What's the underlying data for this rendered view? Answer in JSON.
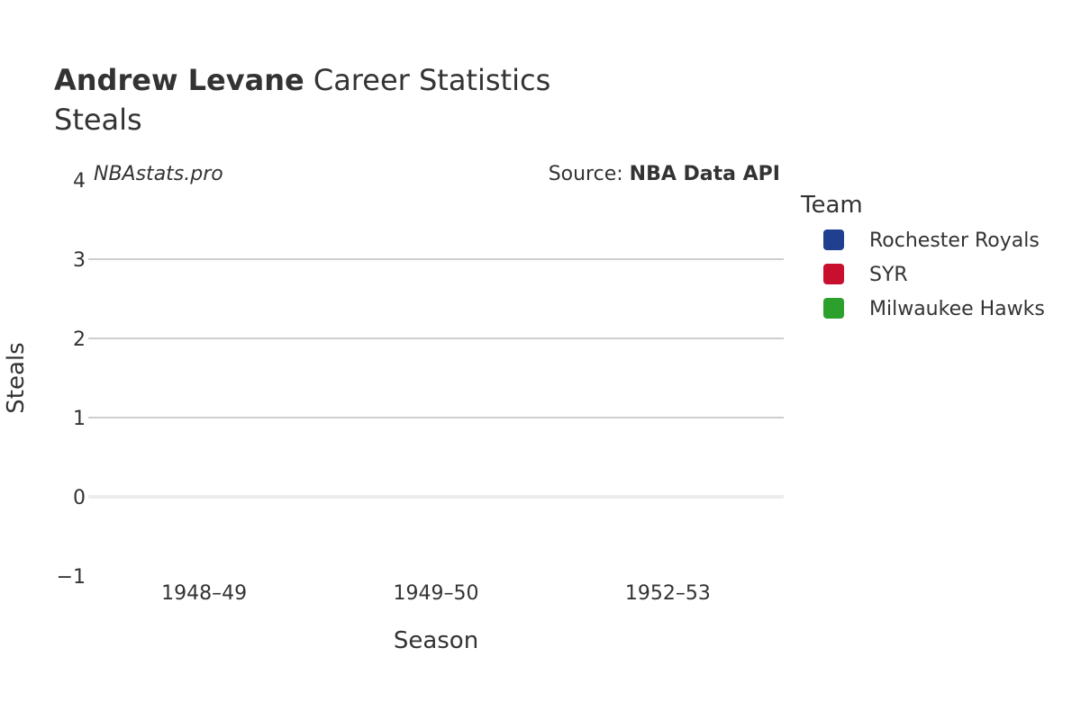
{
  "chart_data": {
    "type": "bar",
    "title_bold": "Andrew Levane",
    "title_rest": " Career Statistics",
    "subtitle": "Steals",
    "xlabel": "Season",
    "ylabel": "Steals",
    "categories": [
      "1948–49",
      "1949–50",
      "1952–53"
    ],
    "ylim": [
      -1,
      4
    ],
    "yticks": [
      4,
      3,
      2,
      1,
      0,
      -1
    ],
    "ytick_labels": [
      "4",
      "3",
      "2",
      "1",
      "0",
      "−1"
    ],
    "grid": true,
    "legend": {
      "title": "Team",
      "position": "right",
      "entries": [
        {
          "name": "Rochester Royals",
          "color": "#1f3f8f"
        },
        {
          "name": "SYR",
          "color": "#c8102e"
        },
        {
          "name": "Milwaukee Hawks",
          "color": "#2ca02c"
        }
      ]
    },
    "series": [
      {
        "name": "Rochester Royals",
        "values": [
          null,
          null,
          null
        ]
      },
      {
        "name": "SYR",
        "values": [
          null,
          null,
          null
        ]
      },
      {
        "name": "Milwaukee Hawks",
        "values": [
          null,
          null,
          null
        ]
      }
    ],
    "watermark": "NBAstats.pro",
    "source_prefix": "Source: ",
    "source_name": "NBA Data API"
  }
}
